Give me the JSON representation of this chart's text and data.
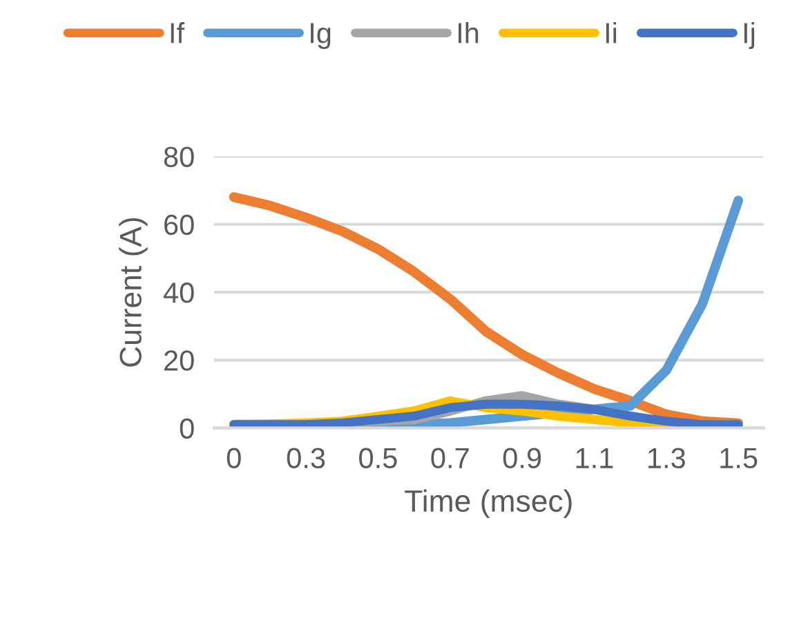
{
  "chart_data": {
    "type": "line",
    "xlabel": "Time (msec)",
    "ylabel": "Current (A)",
    "categories": [
      "0",
      null,
      "0.3",
      null,
      "0.5",
      null,
      "0.7",
      null,
      "0.9",
      null,
      "1.1",
      null,
      "1.3",
      null,
      "1.5"
    ],
    "series": [
      {
        "name": "If",
        "color": "#ed7d31",
        "values": [
          68,
          65.5,
          62,
          58,
          52.7,
          46,
          38,
          28.4,
          21.6,
          16.2,
          11.5,
          8,
          4,
          2,
          1.4
        ]
      },
      {
        "name": "Ig",
        "color": "#5b9bd5",
        "values": [
          1,
          1,
          1,
          1,
          1,
          1,
          1.5,
          2.5,
          3.5,
          4.5,
          5.5,
          6.5,
          17,
          36.5,
          67
        ]
      },
      {
        "name": "Ih",
        "color": "#a5a5a5",
        "values": [
          1,
          1,
          1,
          1.5,
          2,
          2.5,
          5,
          8,
          9.5,
          7,
          5.5,
          3.5,
          1.5,
          1,
          1
        ]
      },
      {
        "name": "Ii",
        "color": "#ffc000",
        "values": [
          1,
          1.2,
          1.5,
          2,
          3.5,
          5,
          8,
          6,
          5,
          3.5,
          2.5,
          1.5,
          1,
          1,
          1
        ]
      },
      {
        "name": "Ij",
        "color": "#4472c4",
        "values": [
          1,
          1,
          1,
          1.5,
          2.5,
          3.5,
          6,
          7,
          7,
          6.5,
          5.5,
          3.5,
          2,
          1,
          1
        ]
      }
    ],
    "ylim": [
      0,
      80
    ],
    "yticks": [
      0,
      20,
      40,
      60,
      80
    ],
    "grid": "y",
    "legend": "top",
    "marker": "none",
    "line_style": "solid"
  }
}
